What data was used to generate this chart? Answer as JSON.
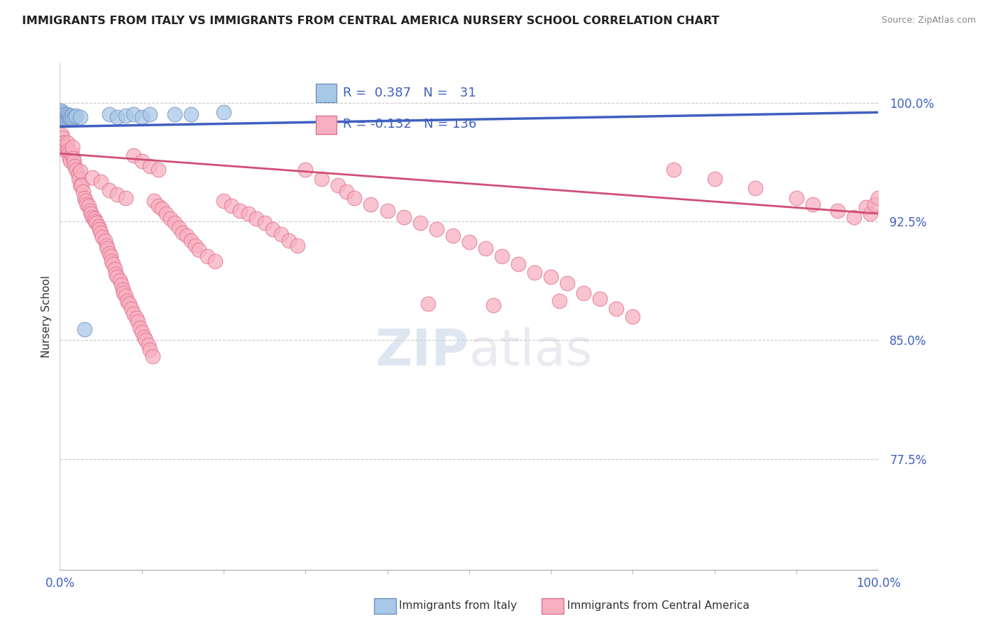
{
  "title": "IMMIGRANTS FROM ITALY VS IMMIGRANTS FROM CENTRAL AMERICA NURSERY SCHOOL CORRELATION CHART",
  "source": "Source: ZipAtlas.com",
  "ylabel": "Nursery School",
  "xlim": [
    0.0,
    1.0
  ],
  "ylim": [
    0.705,
    1.025
  ],
  "yticks": [
    0.775,
    0.85,
    0.925,
    1.0
  ],
  "ytick_labels": [
    "77.5%",
    "85.0%",
    "92.5%",
    "100.0%"
  ],
  "xtick_left": "0.0%",
  "xtick_right": "100.0%",
  "legend_box_labels": [
    "Immigrants from Italy",
    "Immigrants from Central America"
  ],
  "italy_fill": "#A8C8E8",
  "italy_edge": "#7090C0",
  "central_fill": "#F8B0C0",
  "central_edge": "#E07090",
  "trend_italy_color": "#4060C0",
  "trend_central_color": "#D05075",
  "R_italy": 0.387,
  "N_italy": 31,
  "R_central": -0.132,
  "N_central": 136,
  "trend_italy_y0": 0.985,
  "trend_italy_y1": 0.994,
  "trend_central_y0": 0.968,
  "trend_central_y1": 0.93,
  "italy_x": [
    0.001,
    0.002,
    0.003,
    0.003,
    0.004,
    0.005,
    0.005,
    0.006,
    0.006,
    0.007,
    0.008,
    0.009,
    0.01,
    0.011,
    0.012,
    0.013,
    0.014,
    0.015,
    0.018,
    0.02,
    0.025,
    0.03,
    0.06,
    0.07,
    0.08,
    0.09,
    0.1,
    0.11,
    0.14,
    0.16,
    0.2
  ],
  "italy_y": [
    0.995,
    0.993,
    0.992,
    0.994,
    0.991,
    0.993,
    0.99,
    0.992,
    0.993,
    0.991,
    0.99,
    0.993,
    0.991,
    0.992,
    0.99,
    0.991,
    0.992,
    0.99,
    0.991,
    0.992,
    0.991,
    0.857,
    0.993,
    0.991,
    0.992,
    0.993,
    0.991,
    0.993,
    0.993,
    0.993,
    0.994
  ],
  "central_x": [
    0.002,
    0.003,
    0.004,
    0.005,
    0.005,
    0.006,
    0.007,
    0.008,
    0.009,
    0.01,
    0.011,
    0.012,
    0.013,
    0.014,
    0.015,
    0.016,
    0.017,
    0.018,
    0.02,
    0.022,
    0.023,
    0.025,
    0.027,
    0.028,
    0.03,
    0.032,
    0.033,
    0.035,
    0.037,
    0.038,
    0.04,
    0.042,
    0.043,
    0.045,
    0.047,
    0.048,
    0.05,
    0.052,
    0.055,
    0.057,
    0.058,
    0.06,
    0.062,
    0.063,
    0.065,
    0.067,
    0.068,
    0.07,
    0.073,
    0.075,
    0.077,
    0.078,
    0.08,
    0.082,
    0.085,
    0.087,
    0.09,
    0.093,
    0.095,
    0.098,
    0.1,
    0.103,
    0.105,
    0.108,
    0.11,
    0.113,
    0.115,
    0.12,
    0.125,
    0.13,
    0.135,
    0.14,
    0.145,
    0.15,
    0.155,
    0.16,
    0.165,
    0.17,
    0.18,
    0.19,
    0.2,
    0.21,
    0.22,
    0.23,
    0.24,
    0.25,
    0.26,
    0.27,
    0.28,
    0.29,
    0.3,
    0.32,
    0.34,
    0.35,
    0.36,
    0.38,
    0.4,
    0.42,
    0.44,
    0.46,
    0.48,
    0.5,
    0.52,
    0.54,
    0.56,
    0.58,
    0.6,
    0.62,
    0.64,
    0.66,
    0.68,
    0.7,
    0.75,
    0.8,
    0.85,
    0.9,
    0.92,
    0.95,
    0.97,
    0.985,
    0.99,
    0.995,
    1.0,
    0.45,
    0.53,
    0.61,
    0.025,
    0.04,
    0.05,
    0.06,
    0.07,
    0.08,
    0.09,
    0.1,
    0.11,
    0.12
  ],
  "central_y": [
    0.98,
    0.978,
    0.975,
    0.975,
    0.972,
    0.973,
    0.97,
    0.972,
    0.975,
    0.97,
    0.968,
    0.965,
    0.963,
    0.968,
    0.972,
    0.965,
    0.963,
    0.96,
    0.958,
    0.955,
    0.952,
    0.948,
    0.948,
    0.944,
    0.94,
    0.938,
    0.936,
    0.935,
    0.932,
    0.93,
    0.928,
    0.927,
    0.925,
    0.924,
    0.922,
    0.92,
    0.918,
    0.915,
    0.913,
    0.91,
    0.908,
    0.905,
    0.903,
    0.9,
    0.898,
    0.895,
    0.892,
    0.89,
    0.888,
    0.885,
    0.882,
    0.88,
    0.878,
    0.875,
    0.873,
    0.87,
    0.867,
    0.864,
    0.862,
    0.858,
    0.855,
    0.852,
    0.85,
    0.847,
    0.844,
    0.84,
    0.938,
    0.935,
    0.933,
    0.93,
    0.927,
    0.924,
    0.921,
    0.918,
    0.916,
    0.913,
    0.91,
    0.907,
    0.903,
    0.9,
    0.938,
    0.935,
    0.932,
    0.93,
    0.927,
    0.924,
    0.92,
    0.917,
    0.913,
    0.91,
    0.958,
    0.952,
    0.948,
    0.944,
    0.94,
    0.936,
    0.932,
    0.928,
    0.924,
    0.92,
    0.916,
    0.912,
    0.908,
    0.903,
    0.898,
    0.893,
    0.89,
    0.886,
    0.88,
    0.876,
    0.87,
    0.865,
    0.958,
    0.952,
    0.946,
    0.94,
    0.936,
    0.932,
    0.928,
    0.934,
    0.93,
    0.936,
    0.94,
    0.873,
    0.872,
    0.875,
    0.957,
    0.953,
    0.95,
    0.945,
    0.942,
    0.94,
    0.967,
    0.963,
    0.96,
    0.958
  ]
}
